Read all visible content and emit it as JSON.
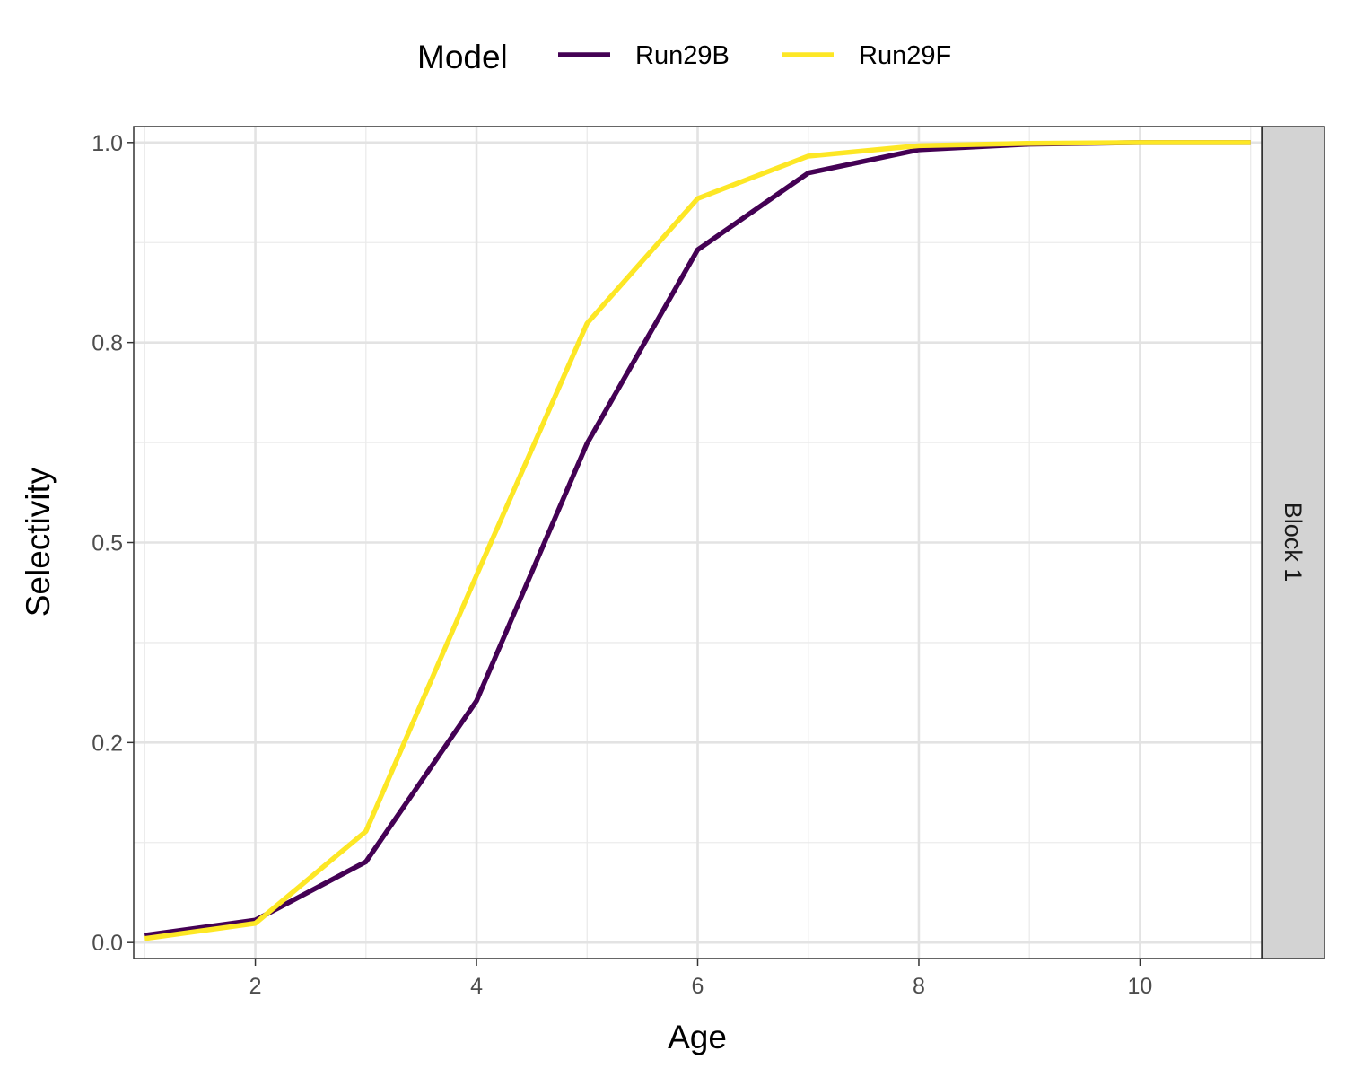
{
  "chart_data": {
    "type": "line",
    "xlabel": "Age",
    "ylabel": "Selectivity",
    "facet_label": "Block 1",
    "legend": {
      "title": "Model",
      "position": "top"
    },
    "xlim": [
      0.9,
      11.1
    ],
    "ylim": [
      -0.02,
      1.02
    ],
    "x_ticks": [
      2,
      4,
      6,
      8,
      10
    ],
    "y_ticks": [
      0.0,
      0.25,
      0.5,
      0.75,
      1.0
    ],
    "y_tick_labels": [
      "0.0",
      "0.2",
      "0.5",
      "0.8",
      "1.0"
    ],
    "grid": true,
    "x": [
      1,
      2,
      3,
      4,
      5,
      6,
      7,
      8,
      9,
      10,
      11
    ],
    "series": [
      {
        "name": "Run29B",
        "color": "#440154",
        "values": [
          0.009,
          0.028,
          0.101,
          0.302,
          0.624,
          0.866,
          0.962,
          0.991,
          0.998,
          1.0,
          1.0
        ]
      },
      {
        "name": "Run29F",
        "color": "#FDE725",
        "values": [
          0.005,
          0.024,
          0.139,
          0.459,
          0.774,
          0.93,
          0.983,
          0.996,
          0.999,
          1.0,
          1.0
        ]
      }
    ]
  }
}
